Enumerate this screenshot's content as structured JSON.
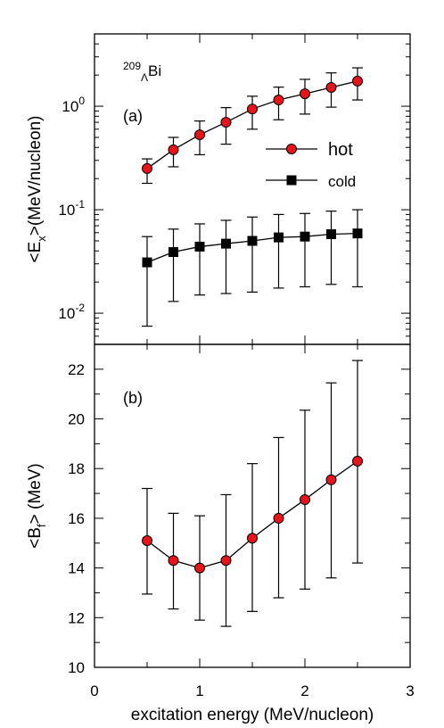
{
  "chart_data": [
    {
      "type": "line",
      "panel_label": "(a)",
      "annotation": {
        "mass_number": "209",
        "hyperon": "Λ",
        "element": "Bi"
      },
      "ylabel": {
        "open": "<E",
        "sub": "x",
        "close": ">(MeV/nucleon)"
      },
      "yscale": "log",
      "ylim": [
        0.005,
        5
      ],
      "yticks": [
        {
          "value": 1,
          "mantissa": "10",
          "exp": "0"
        },
        {
          "value": 0.1,
          "mantissa": "10",
          "exp": "-1"
        },
        {
          "value": 0.01,
          "mantissa": "10",
          "exp": "-2"
        }
      ],
      "x": [
        0.5,
        0.75,
        1.0,
        1.25,
        1.5,
        1.75,
        2.0,
        2.25,
        2.5
      ],
      "series": [
        {
          "name": "hot",
          "marker": "circle",
          "color": "#e8141b",
          "values": [
            0.25,
            0.38,
            0.53,
            0.7,
            0.94,
            1.15,
            1.32,
            1.52,
            1.75
          ],
          "err_low": [
            0.18,
            0.26,
            0.34,
            0.43,
            0.6,
            0.74,
            0.84,
            0.98,
            1.15
          ],
          "err_high": [
            0.31,
            0.5,
            0.72,
            0.97,
            1.25,
            1.53,
            1.82,
            2.1,
            2.35
          ]
        },
        {
          "name": "cold",
          "marker": "square",
          "color": "#000000",
          "values": [
            0.031,
            0.039,
            0.044,
            0.047,
            0.05,
            0.054,
            0.055,
            0.058,
            0.059
          ],
          "err_low": [
            0.0075,
            0.013,
            0.015,
            0.0155,
            0.016,
            0.0175,
            0.018,
            0.019,
            0.018
          ],
          "err_high": [
            0.055,
            0.065,
            0.073,
            0.079,
            0.085,
            0.09,
            0.092,
            0.097,
            0.1
          ]
        }
      ],
      "legend": {
        "placement": "right-center"
      },
      "grid": false
    },
    {
      "type": "line",
      "panel_label": "(b)",
      "ylabel": {
        "open": "<B",
        "sub": "f",
        "close": "> (MeV)"
      },
      "ylim": [
        10,
        23
      ],
      "yticks": [
        10,
        12,
        14,
        16,
        18,
        20,
        22
      ],
      "xlabel": "excitation energy (MeV/nucleon)",
      "xlim": [
        0,
        3
      ],
      "xticks": [
        0,
        1,
        2,
        3
      ],
      "x": [
        0.5,
        0.75,
        1.0,
        1.25,
        1.5,
        1.75,
        2.0,
        2.25,
        2.5
      ],
      "series": [
        {
          "marker": "circle",
          "color": "#e8141b",
          "values": [
            15.1,
            14.3,
            14.0,
            14.3,
            15.2,
            16.0,
            16.75,
            17.55,
            18.3
          ],
          "err_low": [
            12.95,
            12.35,
            11.9,
            11.65,
            12.25,
            12.8,
            13.15,
            13.6,
            14.2
          ],
          "err_high": [
            17.2,
            16.2,
            16.1,
            16.95,
            18.2,
            19.25,
            20.35,
            21.45,
            22.35
          ]
        }
      ],
      "grid": false
    }
  ]
}
